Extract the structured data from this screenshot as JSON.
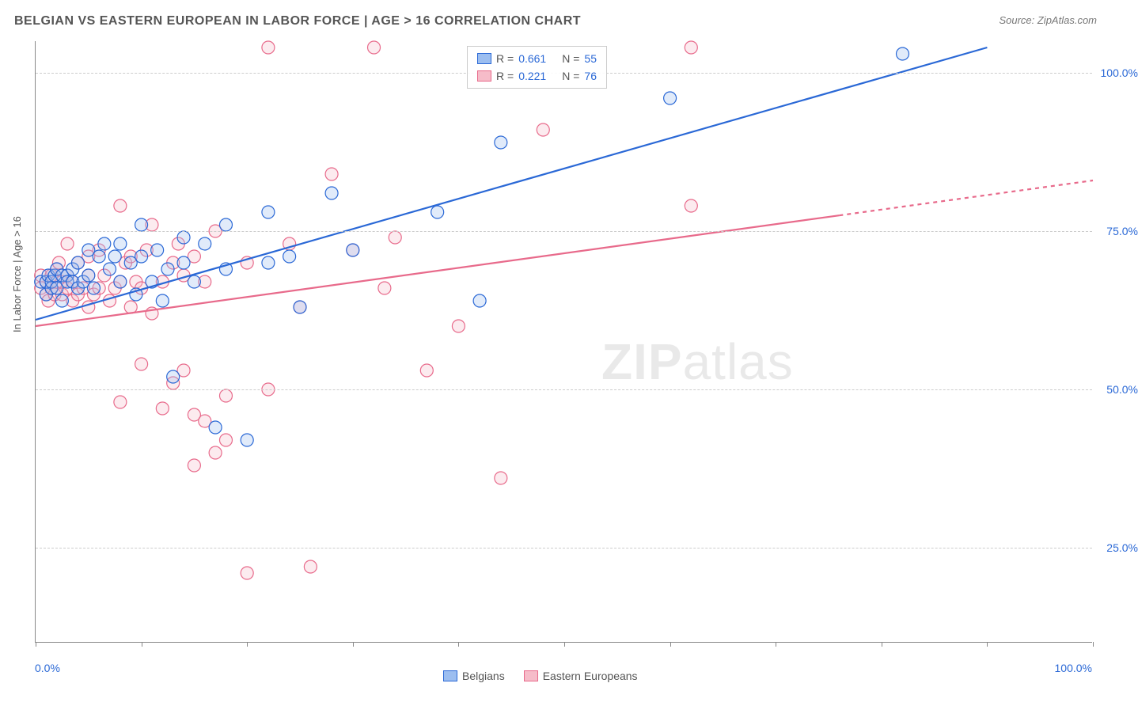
{
  "title": "BELGIAN VS EASTERN EUROPEAN IN LABOR FORCE | AGE > 16 CORRELATION CHART",
  "source": "Source: ZipAtlas.com",
  "y_axis_title": "In Labor Force | Age > 16",
  "watermark_a": "ZIP",
  "watermark_b": "atlas",
  "chart": {
    "type": "scatter",
    "background_color": "#ffffff",
    "grid_color": "#cccccc",
    "axis_color": "#888888",
    "text_color": "#555555",
    "value_color": "#2a68d6",
    "title_fontsize": 16,
    "label_fontsize": 13,
    "tick_fontsize": 14,
    "xlim": [
      0,
      100
    ],
    "ylim": [
      10,
      105
    ],
    "y_ticks": [
      25,
      50,
      75,
      100
    ],
    "y_tick_labels": [
      "25.0%",
      "50.0%",
      "75.0%",
      "100.0%"
    ],
    "x_ticks": [
      0,
      10,
      20,
      30,
      40,
      50,
      60,
      70,
      80,
      90,
      100
    ],
    "x_min_label": "0.0%",
    "x_max_label": "100.0%",
    "marker_radius": 8,
    "marker_fill_opacity": 0.3,
    "marker_stroke_width": 1.2,
    "line_width": 2.2,
    "series": [
      {
        "name": "Belgians",
        "color_stroke": "#2a68d6",
        "color_fill": "#9cbef0",
        "R": "0.661",
        "N": "55",
        "trend": {
          "x1": 0,
          "y1": 61,
          "x2": 90,
          "y2": 104,
          "dashed_from_x": null
        },
        "points": [
          [
            0.5,
            67
          ],
          [
            1,
            65
          ],
          [
            1,
            67
          ],
          [
            1.2,
            68
          ],
          [
            1.5,
            66
          ],
          [
            1.5,
            67
          ],
          [
            1.8,
            68
          ],
          [
            2,
            66
          ],
          [
            2,
            69
          ],
          [
            2.5,
            64
          ],
          [
            2.5,
            68
          ],
          [
            3,
            68
          ],
          [
            3,
            67
          ],
          [
            3.5,
            67
          ],
          [
            3.5,
            69
          ],
          [
            4,
            66
          ],
          [
            4,
            70
          ],
          [
            4.5,
            67
          ],
          [
            5,
            68
          ],
          [
            5,
            72
          ],
          [
            5.5,
            66
          ],
          [
            6,
            71
          ],
          [
            6.5,
            73
          ],
          [
            7,
            69
          ],
          [
            7.5,
            71
          ],
          [
            8,
            73
          ],
          [
            8,
            67
          ],
          [
            9,
            70
          ],
          [
            9.5,
            65
          ],
          [
            10,
            71
          ],
          [
            10,
            76
          ],
          [
            11,
            67
          ],
          [
            11.5,
            72
          ],
          [
            12,
            64
          ],
          [
            12.5,
            69
          ],
          [
            13,
            52
          ],
          [
            14,
            70
          ],
          [
            14,
            74
          ],
          [
            15,
            67
          ],
          [
            16,
            73
          ],
          [
            17,
            44
          ],
          [
            18,
            69
          ],
          [
            18,
            76
          ],
          [
            20,
            42
          ],
          [
            22,
            78
          ],
          [
            22,
            70
          ],
          [
            24,
            71
          ],
          [
            25,
            63
          ],
          [
            28,
            81
          ],
          [
            30,
            72
          ],
          [
            38,
            78
          ],
          [
            42,
            64
          ],
          [
            44,
            89
          ],
          [
            60,
            96
          ],
          [
            82,
            103
          ]
        ]
      },
      {
        "name": "Eastern Europeans",
        "color_stroke": "#e86a8b",
        "color_fill": "#f6bcc9",
        "R": "0.221",
        "N": "76",
        "trend": {
          "x1": 0,
          "y1": 60,
          "x2": 100,
          "y2": 83,
          "dashed_from_x": 76
        },
        "points": [
          [
            0.5,
            66
          ],
          [
            0.5,
            68
          ],
          [
            1,
            65
          ],
          [
            1,
            67
          ],
          [
            1.2,
            64
          ],
          [
            1.5,
            66
          ],
          [
            1.5,
            68
          ],
          [
            1.8,
            65
          ],
          [
            2,
            67
          ],
          [
            2,
            69
          ],
          [
            2.2,
            70
          ],
          [
            2.5,
            65
          ],
          [
            2.5,
            67
          ],
          [
            3,
            66
          ],
          [
            3,
            68
          ],
          [
            3,
            73
          ],
          [
            3.5,
            64
          ],
          [
            3.5,
            67
          ],
          [
            4,
            65
          ],
          [
            4,
            70
          ],
          [
            4.5,
            66
          ],
          [
            5,
            63
          ],
          [
            5,
            68
          ],
          [
            5,
            71
          ],
          [
            5.5,
            65
          ],
          [
            6,
            66
          ],
          [
            6,
            72
          ],
          [
            6.5,
            68
          ],
          [
            7,
            64
          ],
          [
            7.5,
            66
          ],
          [
            8,
            48
          ],
          [
            8,
            67
          ],
          [
            8,
            79
          ],
          [
            8.5,
            70
          ],
          [
            9,
            63
          ],
          [
            9,
            71
          ],
          [
            9.5,
            67
          ],
          [
            10,
            54
          ],
          [
            10,
            66
          ],
          [
            10.5,
            72
          ],
          [
            11,
            62
          ],
          [
            11,
            76
          ],
          [
            12,
            47
          ],
          [
            12,
            67
          ],
          [
            13,
            51
          ],
          [
            13,
            70
          ],
          [
            13.5,
            73
          ],
          [
            14,
            53
          ],
          [
            14,
            68
          ],
          [
            15,
            38
          ],
          [
            15,
            46
          ],
          [
            15,
            71
          ],
          [
            16,
            45
          ],
          [
            16,
            67
          ],
          [
            17,
            40
          ],
          [
            17,
            75
          ],
          [
            18,
            42
          ],
          [
            18,
            49
          ],
          [
            20,
            21
          ],
          [
            20,
            70
          ],
          [
            22,
            104
          ],
          [
            22,
            50
          ],
          [
            24,
            73
          ],
          [
            25,
            63
          ],
          [
            26,
            22
          ],
          [
            28,
            84
          ],
          [
            30,
            72
          ],
          [
            32,
            104
          ],
          [
            33,
            66
          ],
          [
            34,
            74
          ],
          [
            37,
            53
          ],
          [
            40,
            60
          ],
          [
            44,
            36
          ],
          [
            48,
            91
          ],
          [
            62,
            79
          ],
          [
            62,
            104
          ]
        ]
      }
    ]
  },
  "legend_bottom": [
    "Belgians",
    "Eastern Europeans"
  ]
}
